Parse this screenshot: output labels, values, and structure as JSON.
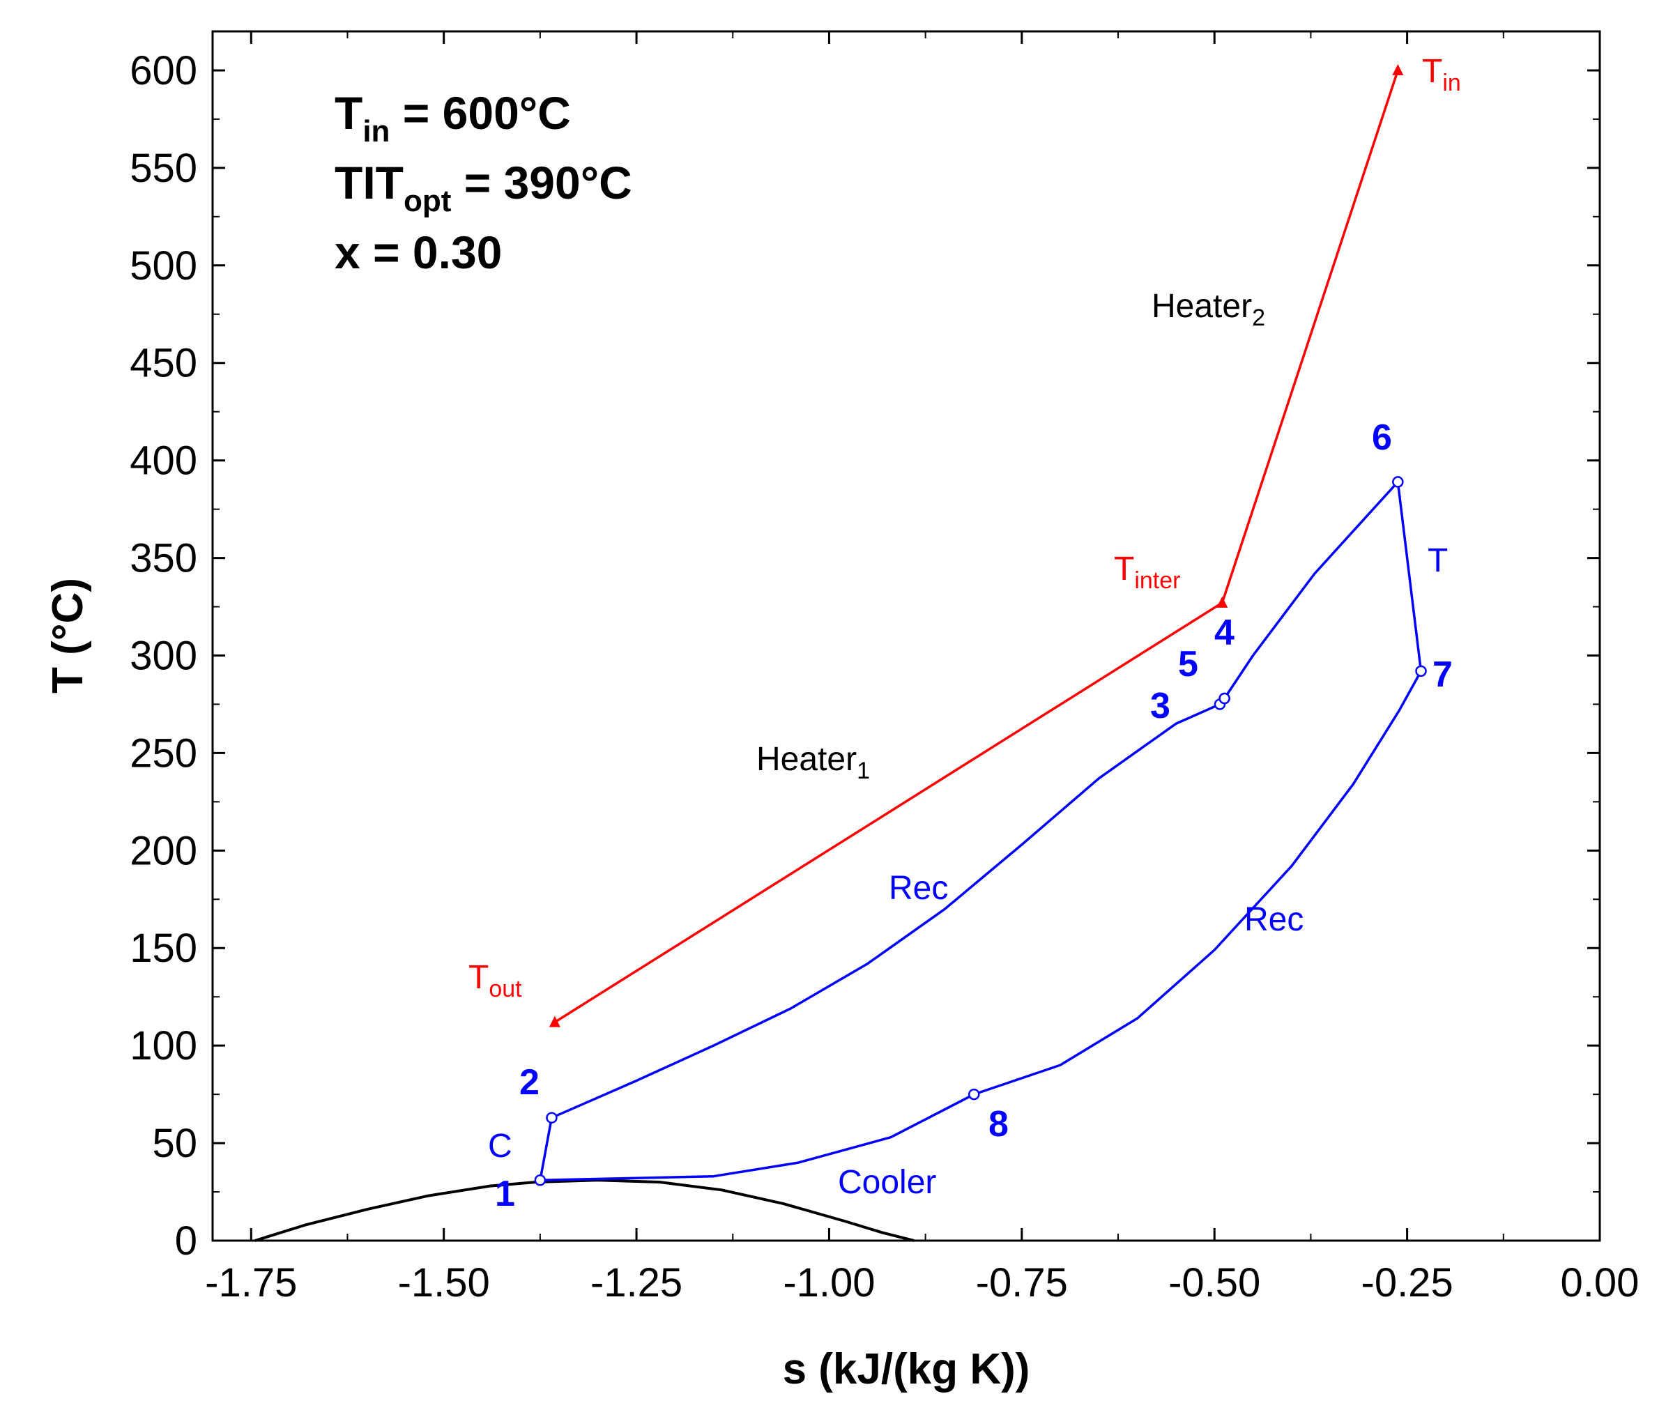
{
  "chart_data": {
    "type": "line",
    "title": "",
    "xlabel": "s (kJ/(kg K))",
    "ylabel": "T (°C)",
    "xlim": [
      -1.8,
      0.0
    ],
    "ylim": [
      0,
      620
    ],
    "x_ticks": [
      -1.75,
      -1.5,
      -1.25,
      -1.0,
      -0.75,
      -0.5,
      -0.25,
      0.0
    ],
    "x_tick_labels": [
      "-1.75",
      "-1.50",
      "-1.25",
      "-1.00",
      "-0.75",
      "-0.50",
      "-0.25",
      "0.00"
    ],
    "y_ticks": [
      0,
      50,
      100,
      150,
      200,
      250,
      300,
      350,
      400,
      450,
      500,
      550,
      600
    ],
    "y_tick_labels": [
      "0",
      "50",
      "100",
      "150",
      "200",
      "250",
      "300",
      "350",
      "400",
      "450",
      "500",
      "550",
      "600"
    ],
    "annotations": {
      "t_in": {
        "main": "T",
        "sub": "in",
        "rest": " = 600°C"
      },
      "tit_opt": {
        "main": "TIT",
        "sub": "opt",
        "rest": " = 390°C"
      },
      "x_val": {
        "main": "x = 0.30"
      }
    },
    "series": [
      {
        "name": "saturation dome",
        "color": "#000000",
        "x": [
          -1.745,
          -1.68,
          -1.6,
          -1.52,
          -1.44,
          -1.38,
          -1.3,
          -1.22,
          -1.14,
          -1.06,
          -0.98,
          -0.93,
          -0.89
        ],
        "y": [
          0,
          8,
          16,
          23,
          28,
          30,
          31,
          30,
          26,
          19,
          10,
          4,
          0
        ]
      },
      {
        "name": "sCO2 cycle",
        "color": "#0000ff",
        "x": [
          -1.375,
          -1.36,
          -1.25,
          -1.15,
          -1.05,
          -0.95,
          -0.85,
          -0.75,
          -0.65,
          -0.55,
          -0.493,
          -0.487,
          -0.45,
          -0.37,
          -0.262,
          -0.232,
          -0.26,
          -0.32,
          -0.4,
          -0.5,
          -0.6,
          -0.7,
          -0.812,
          -0.92,
          -1.04,
          -1.15,
          -1.375
        ],
        "y": [
          31,
          63,
          82,
          100,
          119,
          142,
          170,
          203,
          237,
          265,
          275,
          278,
          300,
          342,
          389,
          292,
          272,
          234,
          192,
          149,
          114,
          90,
          75,
          53,
          40,
          33,
          31
        ]
      },
      {
        "name": "heat source",
        "color": "#ff0000",
        "x": [
          -1.356,
          -0.49,
          -0.262
        ],
        "y": [
          112,
          327,
          600
        ]
      }
    ],
    "state_points": [
      {
        "label": "1",
        "s": -1.375,
        "T": 31
      },
      {
        "label": "2",
        "s": -1.36,
        "T": 63
      },
      {
        "label": "3",
        "s": -0.493,
        "T": 275
      },
      {
        "label": "4",
        "s": -0.487,
        "T": 278
      },
      {
        "label": "5",
        "s": -0.487,
        "T": 278
      },
      {
        "label": "6",
        "s": -0.262,
        "T": 389
      },
      {
        "label": "7",
        "s": -0.232,
        "T": 292
      },
      {
        "label": "8",
        "s": -0.812,
        "T": 75
      }
    ],
    "process_labels": [
      "C",
      "Rec",
      "T",
      "Rec",
      "Cooler"
    ],
    "heat_source_labels": {
      "t_in": {
        "main": "T",
        "sub": "in"
      },
      "t_inter": {
        "main": "T",
        "sub": "inter"
      },
      "t_out": {
        "main": "T",
        "sub": "out"
      },
      "heater1": {
        "main": "Heater",
        "sub": "1"
      },
      "heater2": {
        "main": "Heater",
        "sub": "2"
      }
    }
  }
}
